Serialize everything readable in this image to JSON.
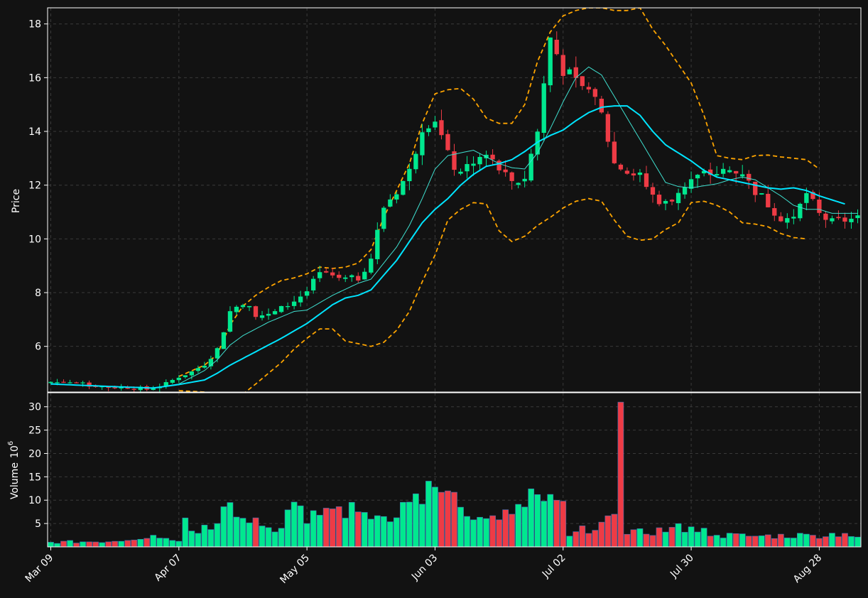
{
  "chart_data": {
    "type": "candlestick",
    "title": "",
    "price_panel": {
      "ylabel": "Price",
      "ylim": [
        4.3,
        18.6
      ],
      "yticks": [
        6,
        8,
        10,
        12,
        14,
        16,
        18
      ],
      "grid": true
    },
    "volume_panel": {
      "ylabel_main": "Volume",
      "ylabel_unit": "10",
      "ylabel_exp": "6",
      "ylim": [
        0,
        33
      ],
      "yticks": [
        5,
        10,
        15,
        20,
        25,
        30
      ],
      "grid": true
    },
    "x_tick_labels": [
      "Mar 09",
      "Apr 07",
      "May 05",
      "Jun 03",
      "Jul 02",
      "Jul 30",
      "Aug 28"
    ],
    "x_tick_index": [
      0,
      20,
      40,
      60,
      80,
      100,
      120
    ],
    "colors": {
      "background": "#121212",
      "up": "#00e88f",
      "down": "#ee3b45",
      "ma_fast": "#3fe0d0",
      "ma_slow": "#00e5ff",
      "bands": "#ffa500",
      "axis": "#ffffff",
      "grid": "#3a3a3a"
    },
    "series": [
      {
        "name": "MA fast",
        "kind": "line"
      },
      {
        "name": "MA slow",
        "kind": "line"
      },
      {
        "name": "Upper band",
        "kind": "dashed"
      },
      {
        "name": "Lower band",
        "kind": "dashed"
      }
    ],
    "anchors": {
      "close": [
        [
          0,
          4.68
        ],
        [
          3,
          4.66
        ],
        [
          6,
          4.55
        ],
        [
          9,
          4.48
        ],
        [
          12,
          4.48
        ],
        [
          15,
          4.4
        ],
        [
          18,
          4.6
        ],
        [
          20,
          4.88
        ],
        [
          22,
          5.05
        ],
        [
          24,
          5.35
        ],
        [
          26,
          5.9
        ],
        [
          28,
          7.3
        ],
        [
          30,
          7.65
        ],
        [
          32,
          7.2
        ],
        [
          34,
          7.15
        ],
        [
          36,
          7.4
        ],
        [
          38,
          7.7
        ],
        [
          40,
          8.05
        ],
        [
          42,
          8.7
        ],
        [
          44,
          8.5
        ],
        [
          46,
          8.45
        ],
        [
          48,
          8.55
        ],
        [
          50,
          9.3
        ],
        [
          52,
          11.2
        ],
        [
          54,
          11.8
        ],
        [
          56,
          12.5
        ],
        [
          58,
          14.2
        ],
        [
          60,
          14.5
        ],
        [
          62,
          13.1
        ],
        [
          64,
          12.3
        ],
        [
          66,
          12.9
        ],
        [
          68,
          13.1
        ],
        [
          70,
          12.6
        ],
        [
          72,
          12.0
        ],
        [
          74,
          12.3
        ],
        [
          76,
          14.0
        ],
        [
          78,
          17.5
        ],
        [
          80,
          16.3
        ],
        [
          82,
          15.8
        ],
        [
          84,
          15.5
        ],
        [
          86,
          14.6
        ],
        [
          88,
          12.8
        ],
        [
          90,
          12.5
        ],
        [
          92,
          12.3
        ],
        [
          94,
          11.6
        ],
        [
          96,
          11.3
        ],
        [
          98,
          11.8
        ],
        [
          100,
          12.2
        ],
        [
          102,
          12.4
        ],
        [
          104,
          12.45
        ],
        [
          106,
          12.5
        ],
        [
          108,
          12.35
        ],
        [
          110,
          11.8
        ],
        [
          112,
          11.3
        ],
        [
          114,
          10.8
        ],
        [
          116,
          10.75
        ],
        [
          118,
          11.7
        ],
        [
          120,
          10.9
        ],
        [
          122,
          10.6
        ],
        [
          124,
          10.7
        ],
        [
          126,
          10.75
        ]
      ],
      "volume": [
        [
          0,
          1.0
        ],
        [
          10,
          1.2
        ],
        [
          16,
          2.5
        ],
        [
          20,
          1.2
        ],
        [
          21,
          6.2
        ],
        [
          22,
          3.4
        ],
        [
          26,
          5.0
        ],
        [
          27,
          8.6
        ],
        [
          28,
          9.5
        ],
        [
          35,
          3.2
        ],
        [
          38,
          9.6
        ],
        [
          40,
          5.0
        ],
        [
          43,
          8.3
        ],
        [
          48,
          7.5
        ],
        [
          52,
          6.5
        ],
        [
          56,
          9.6
        ],
        [
          60,
          12.8
        ],
        [
          61,
          11.7
        ],
        [
          64,
          8.5
        ],
        [
          66,
          5.8
        ],
        [
          70,
          5.8
        ],
        [
          72,
          7.0
        ],
        [
          76,
          11.2
        ],
        [
          77,
          9.8
        ],
        [
          79,
          10.0
        ],
        [
          80,
          9.8
        ],
        [
          81,
          2.3
        ],
        [
          86,
          5.3
        ],
        [
          88,
          7.0
        ],
        [
          89,
          31.0
        ],
        [
          90,
          2.7
        ],
        [
          100,
          4.3
        ],
        [
          104,
          2.5
        ],
        [
          110,
          2.3
        ],
        [
          119,
          2.5
        ],
        [
          124,
          2.9
        ],
        [
          126,
          2.1
        ]
      ],
      "ma_fast": [
        [
          0,
          4.6
        ],
        [
          10,
          4.5
        ],
        [
          16,
          4.45
        ],
        [
          20,
          4.6
        ],
        [
          24,
          5.1
        ],
        [
          26,
          5.5
        ],
        [
          28,
          6.05
        ],
        [
          30,
          6.4
        ],
        [
          34,
          6.9
        ],
        [
          38,
          7.3
        ],
        [
          40,
          7.35
        ],
        [
          44,
          7.9
        ],
        [
          48,
          8.35
        ],
        [
          50,
          8.5
        ],
        [
          54,
          9.7
        ],
        [
          56,
          10.5
        ],
        [
          58,
          11.5
        ],
        [
          60,
          12.6
        ],
        [
          62,
          13.1
        ],
        [
          64,
          13.2
        ],
        [
          66,
          13.3
        ],
        [
          70,
          12.8
        ],
        [
          72,
          12.65
        ],
        [
          74,
          12.6
        ],
        [
          76,
          13.2
        ],
        [
          78,
          14.1
        ],
        [
          80,
          15.1
        ],
        [
          82,
          16.0
        ],
        [
          84,
          16.4
        ],
        [
          86,
          16.1
        ],
        [
          88,
          15.3
        ],
        [
          90,
          14.5
        ],
        [
          92,
          13.7
        ],
        [
          94,
          12.9
        ],
        [
          96,
          12.1
        ],
        [
          98,
          11.95
        ],
        [
          100,
          11.9
        ],
        [
          104,
          12.05
        ],
        [
          106,
          12.2
        ],
        [
          108,
          12.3
        ],
        [
          110,
          12.2
        ],
        [
          114,
          11.6
        ],
        [
          116,
          11.25
        ],
        [
          118,
          11.1
        ],
        [
          120,
          11.1
        ],
        [
          122,
          10.95
        ],
        [
          126,
          10.95
        ]
      ],
      "ma_slow": [
        [
          0,
          4.6
        ],
        [
          10,
          4.5
        ],
        [
          16,
          4.45
        ],
        [
          20,
          4.58
        ],
        [
          24,
          4.75
        ],
        [
          26,
          5.0
        ],
        [
          28,
          5.3
        ],
        [
          30,
          5.55
        ],
        [
          32,
          5.8
        ],
        [
          36,
          6.3
        ],
        [
          40,
          6.85
        ],
        [
          44,
          7.55
        ],
        [
          46,
          7.8
        ],
        [
          48,
          7.9
        ],
        [
          50,
          8.1
        ],
        [
          52,
          8.65
        ],
        [
          54,
          9.2
        ],
        [
          56,
          9.9
        ],
        [
          58,
          10.6
        ],
        [
          60,
          11.1
        ],
        [
          62,
          11.5
        ],
        [
          64,
          12.0
        ],
        [
          66,
          12.4
        ],
        [
          68,
          12.7
        ],
        [
          70,
          12.8
        ],
        [
          72,
          12.95
        ],
        [
          74,
          13.25
        ],
        [
          76,
          13.6
        ],
        [
          78,
          13.85
        ],
        [
          80,
          14.05
        ],
        [
          82,
          14.4
        ],
        [
          84,
          14.7
        ],
        [
          86,
          14.9
        ],
        [
          88,
          14.95
        ],
        [
          90,
          14.95
        ],
        [
          92,
          14.6
        ],
        [
          94,
          14.0
        ],
        [
          96,
          13.5
        ],
        [
          98,
          13.2
        ],
        [
          100,
          12.9
        ],
        [
          102,
          12.55
        ],
        [
          104,
          12.3
        ],
        [
          106,
          12.2
        ],
        [
          108,
          12.1
        ],
        [
          110,
          12.0
        ],
        [
          112,
          11.9
        ],
        [
          114,
          11.85
        ],
        [
          116,
          11.9
        ],
        [
          118,
          11.8
        ],
        [
          120,
          11.6
        ],
        [
          122,
          11.45
        ],
        [
          124,
          11.3
        ]
      ],
      "upper": [
        [
          20,
          4.88
        ],
        [
          24,
          5.3
        ],
        [
          26,
          5.7
        ],
        [
          28,
          6.8
        ],
        [
          30,
          7.5
        ],
        [
          32,
          7.9
        ],
        [
          34,
          8.2
        ],
        [
          36,
          8.45
        ],
        [
          38,
          8.55
        ],
        [
          40,
          8.7
        ],
        [
          42,
          8.95
        ],
        [
          44,
          8.9
        ],
        [
          46,
          8.95
        ],
        [
          48,
          9.1
        ],
        [
          50,
          9.6
        ],
        [
          52,
          10.8
        ],
        [
          54,
          11.8
        ],
        [
          56,
          12.8
        ],
        [
          58,
          14.3
        ],
        [
          60,
          15.4
        ],
        [
          62,
          15.55
        ],
        [
          64,
          15.6
        ],
        [
          66,
          15.2
        ],
        [
          68,
          14.5
        ],
        [
          70,
          14.3
        ],
        [
          72,
          14.3
        ],
        [
          74,
          15.0
        ],
        [
          76,
          16.6
        ],
        [
          78,
          17.7
        ],
        [
          80,
          18.3
        ],
        [
          82,
          18.5
        ],
        [
          84,
          18.6
        ],
        [
          86,
          18.6
        ],
        [
          88,
          18.5
        ],
        [
          90,
          18.5
        ],
        [
          92,
          18.6
        ],
        [
          94,
          17.8
        ],
        [
          96,
          17.2
        ],
        [
          98,
          16.5
        ],
        [
          100,
          15.8
        ],
        [
          102,
          14.6
        ],
        [
          104,
          13.1
        ],
        [
          106,
          13.0
        ],
        [
          108,
          12.95
        ],
        [
          110,
          13.1
        ],
        [
          112,
          13.12
        ],
        [
          114,
          13.05
        ],
        [
          116,
          13.0
        ],
        [
          118,
          12.95
        ],
        [
          120,
          12.6
        ]
      ],
      "lower": [
        [
          20,
          4.35
        ],
        [
          24,
          4.3
        ],
        [
          28,
          4.2
        ],
        [
          30,
          4.22
        ],
        [
          32,
          4.6
        ],
        [
          34,
          5.0
        ],
        [
          36,
          5.4
        ],
        [
          38,
          5.9
        ],
        [
          40,
          6.3
        ],
        [
          42,
          6.65
        ],
        [
          44,
          6.65
        ],
        [
          46,
          6.2
        ],
        [
          48,
          6.1
        ],
        [
          50,
          6.0
        ],
        [
          52,
          6.15
        ],
        [
          54,
          6.6
        ],
        [
          56,
          7.3
        ],
        [
          58,
          8.4
        ],
        [
          60,
          9.4
        ],
        [
          62,
          10.7
        ],
        [
          64,
          11.1
        ],
        [
          66,
          11.35
        ],
        [
          68,
          11.3
        ],
        [
          70,
          10.3
        ],
        [
          72,
          9.9
        ],
        [
          74,
          10.1
        ],
        [
          76,
          10.5
        ],
        [
          78,
          10.8
        ],
        [
          80,
          11.15
        ],
        [
          82,
          11.4
        ],
        [
          84,
          11.5
        ],
        [
          86,
          11.4
        ],
        [
          88,
          10.7
        ],
        [
          90,
          10.1
        ],
        [
          92,
          9.95
        ],
        [
          94,
          10.0
        ],
        [
          96,
          10.35
        ],
        [
          98,
          10.6
        ],
        [
          100,
          11.35
        ],
        [
          102,
          11.4
        ],
        [
          104,
          11.25
        ],
        [
          106,
          11.0
        ],
        [
          108,
          10.6
        ],
        [
          110,
          10.55
        ],
        [
          112,
          10.45
        ],
        [
          114,
          10.2
        ],
        [
          116,
          10.05
        ],
        [
          118,
          10.0
        ]
      ]
    },
    "n_candles": 127
  }
}
